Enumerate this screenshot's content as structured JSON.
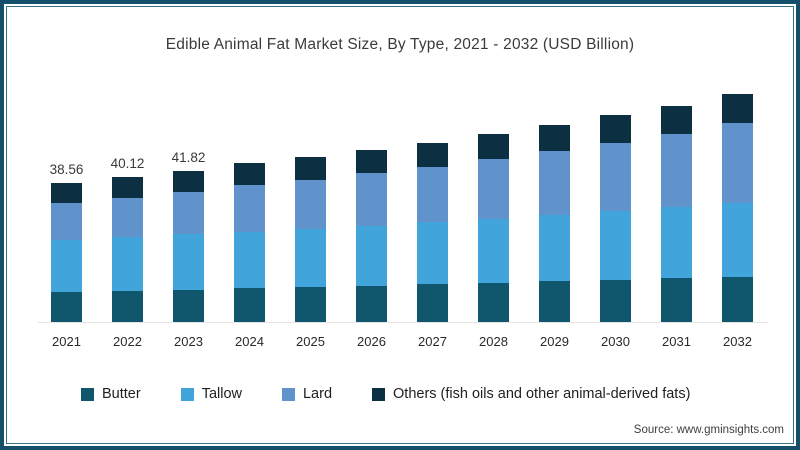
{
  "title": "Edible Animal Fat Market Size, By Type, 2021 - 2032 (USD Billion)",
  "source": "Source: www.gminsights.com",
  "colors": {
    "frame_border": "#15506a",
    "butter": "#10566d",
    "tallow": "#41a5db",
    "lard": "#6092cb",
    "others": "#0d2f42",
    "axis_line": "#e4e4e4",
    "title_text": "#3b3b3b"
  },
  "chart_data": {
    "type": "bar",
    "stacked": true,
    "title": "Edible Animal Fat Market Size, By Type, 2021 - 2032 (USD Billion)",
    "unit": "USD Billion",
    "categories": [
      "2021",
      "2022",
      "2023",
      "2024",
      "2025",
      "2026",
      "2027",
      "2028",
      "2029",
      "2030",
      "2031",
      "2032"
    ],
    "series": [
      {
        "name": "Butter",
        "color": "#10566d",
        "values": [
          8.5,
          8.8,
          9.1,
          9.6,
          9.9,
          10.3,
          10.7,
          11.1,
          11.5,
          11.9,
          12.3,
          12.7
        ]
      },
      {
        "name": "Tallow",
        "color": "#41a5db",
        "values": [
          14.3,
          14.8,
          15.3,
          15.5,
          16.0,
          16.5,
          17.0,
          17.6,
          18.2,
          18.8,
          19.5,
          20.2
        ]
      },
      {
        "name": "Lard",
        "color": "#6092cb",
        "values": [
          10.2,
          10.9,
          11.6,
          12.8,
          13.5,
          14.4,
          15.3,
          16.3,
          17.6,
          18.9,
          20.3,
          22.0
        ]
      },
      {
        "name": "Others (fish oils and other animal-derived fats)",
        "color": "#0d2f42",
        "values": [
          5.56,
          5.62,
          5.82,
          6.0,
          6.2,
          6.4,
          6.6,
          6.9,
          7.2,
          7.5,
          7.7,
          8.1
        ]
      }
    ],
    "totals_estimated": [
      38.56,
      40.12,
      41.82,
      43.9,
      45.6,
      47.6,
      49.6,
      51.9,
      54.5,
      57.1,
      59.8,
      63.0
    ],
    "total_labels": [
      "38.56",
      "40.12",
      "41.82"
    ],
    "legend_position": "bottom",
    "legend_order": [
      "Butter",
      "Tallow",
      "Lard",
      "Others (fish oils and other animal-derived fats)"
    ],
    "grid": false,
    "ylim": [
      0,
      66
    ]
  }
}
